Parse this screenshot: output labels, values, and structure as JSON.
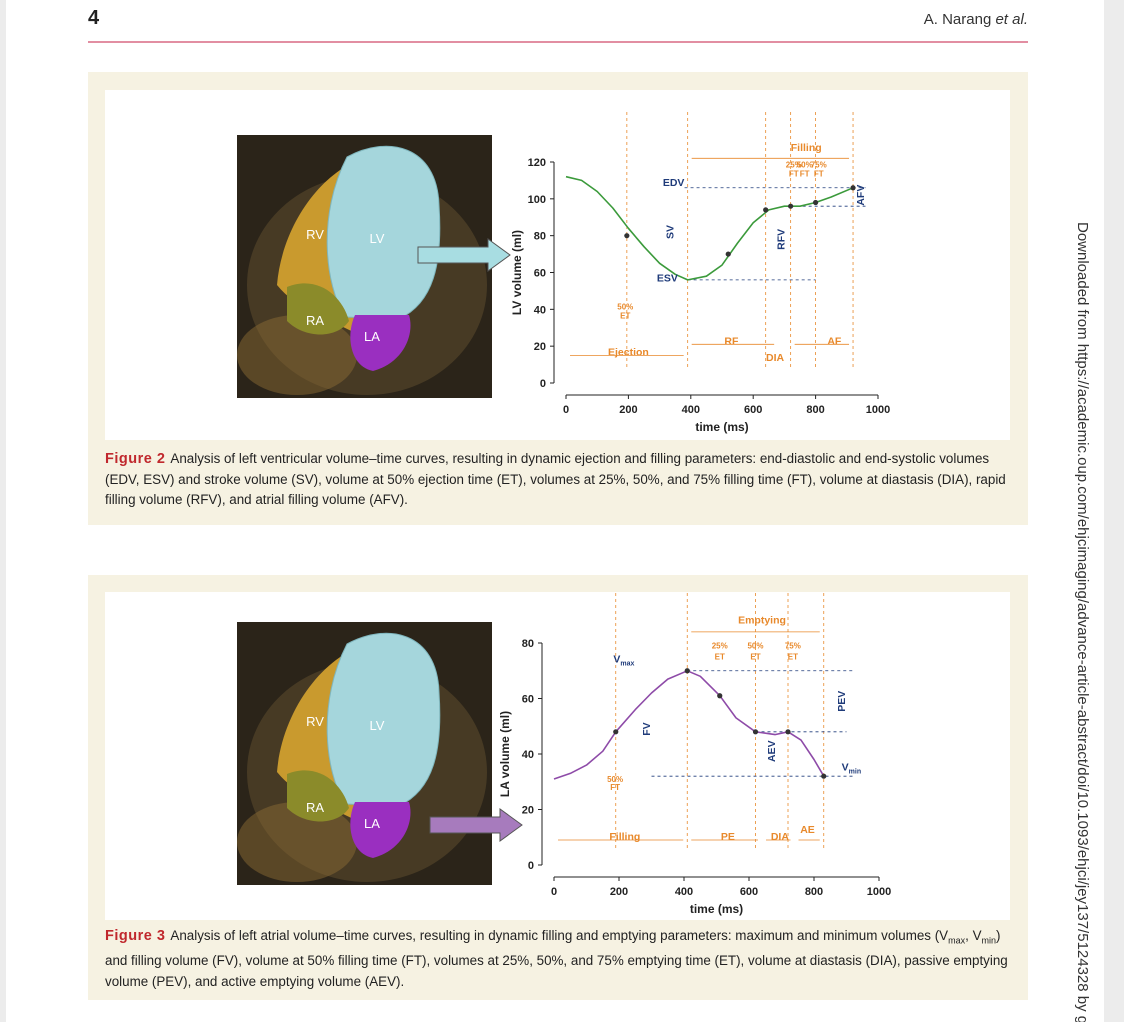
{
  "header": {
    "page_number": "4",
    "author": "A. Narang",
    "author_suffix": "et al."
  },
  "side_note": "Downloaded from https://academic.oup.com/ehjcimaging/advance-article-abstract/doi/10.1093/ehjci/jey137/5124328 by gu",
  "figures": [
    {
      "heart_labels": [
        "RV",
        "LV",
        "RA",
        "LA"
      ],
      "caption_label": "Figure 2",
      "caption_parts": [
        {
          "text": "Analysis of left ventricular volume–time curves, resulting in dynamic ejection and filling parameters: end-diastolic and end-systolic volumes (EDV, ESV) and stroke volume (SV), volume at 50% ejection time (ET), volumes at 25%, 50%, and 75% filling time (FT), volume at diastasis (DIA), rapid filling volume (RFV), and atrial filling volume (AFV)."
        }
      ]
    },
    {
      "heart_labels": [
        "RV",
        "LV",
        "RA",
        "LA"
      ],
      "caption_label": "Figure 3",
      "caption_parts": [
        {
          "text": "Analysis of left atrial volume–time curves, resulting in dynamic filling and emptying parameters: maximum and minimum volumes (V"
        },
        {
          "sub": "max"
        },
        {
          "text": ", V"
        },
        {
          "sub": "min"
        },
        {
          "text": ") and filling volume (FV), volume at 50% filling time (FT), volumes at 25%, 50%, and 75% emptying time (ET), volume at diastasis (DIA), passive emptying volume (PEV), and active emptying volume (AEV)."
        }
      ]
    }
  ],
  "chart_data": [
    {
      "type": "line",
      "xlabel": "time (ms)",
      "ylabel": "LV volume (ml)",
      "xlim": [
        0,
        1000
      ],
      "xticks": [
        0,
        200,
        400,
        600,
        800,
        1000
      ],
      "ylim": [
        0,
        120
      ],
      "yticks": [
        0,
        20,
        40,
        60,
        80,
        100,
        120
      ],
      "series": [
        {
          "color": "#3b9a3b",
          "x": [
            0,
            50,
            100,
            150,
            200,
            250,
            300,
            350,
            390,
            450,
            500,
            550,
            600,
            650,
            700,
            750,
            800,
            850,
            920
          ],
          "values": [
            112,
            110,
            104,
            95,
            84,
            74,
            65,
            59,
            56,
            58,
            64,
            76,
            87,
            94,
            96,
            96,
            98,
            101,
            106
          ]
        }
      ],
      "markers": {
        "x": [
          195,
          520,
          640,
          720,
          800,
          920
        ],
        "values": [
          80,
          70,
          94,
          96,
          98,
          106
        ]
      },
      "annotations": [
        "Filling",
        "25%",
        "FT",
        "50%",
        "FT",
        "75%",
        "FT",
        "EDV",
        "SV",
        "ESV",
        "RFV",
        "AFV",
        "50%",
        "ET",
        "Ejection",
        "RF",
        "DIA",
        "AF"
      ]
    },
    {
      "type": "line",
      "xlabel": "time (ms)",
      "ylabel": "LA volume (ml)",
      "xlim": [
        0,
        1000
      ],
      "xticks": [
        0,
        200,
        400,
        600,
        800,
        1000
      ],
      "ylim": [
        0,
        80
      ],
      "yticks": [
        0,
        20,
        40,
        60,
        80
      ],
      "series": [
        {
          "color": "#8e4ba8",
          "x": [
            0,
            50,
            100,
            150,
            190,
            250,
            300,
            350,
            410,
            450,
            510,
            560,
            620,
            680,
            720,
            760,
            800,
            830
          ],
          "values": [
            31,
            33,
            36,
            41,
            48,
            56,
            62,
            67,
            70,
            68,
            61,
            53,
            48,
            47,
            48,
            45,
            38,
            32
          ]
        }
      ],
      "markers": {
        "x": [
          190,
          410,
          510,
          620,
          720,
          830
        ],
        "values": [
          48,
          70,
          61,
          48,
          48,
          32
        ]
      },
      "annotations": [
        "Emptying",
        "25%",
        "ET",
        "50%",
        "ET",
        "75%",
        "ET",
        {
          "text": "V",
          "sub": "max"
        },
        "FV",
        "PEV",
        "AEV",
        {
          "text": "V",
          "sub": "min"
        },
        "50%",
        "FT",
        "Filling",
        "PE",
        "DIA",
        "AE"
      ]
    }
  ]
}
